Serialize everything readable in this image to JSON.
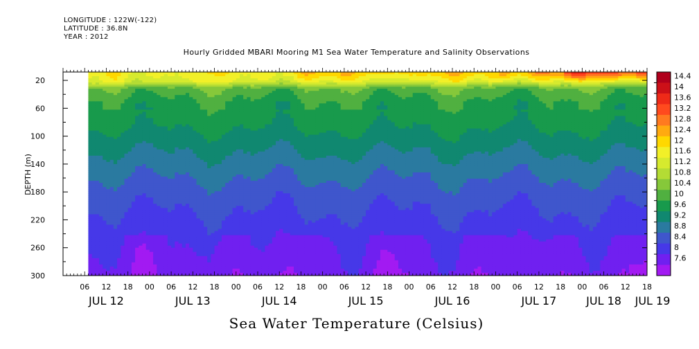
{
  "header": {
    "longitude": "LONGITUDE : 122W(-122)",
    "latitude": "LATITUDE : 36.8N",
    "year": "YEAR : 2012"
  },
  "chart_data": {
    "type": "heatmap",
    "title": "Hourly Gridded MBARI Mooring M1 Sea Water Temperature and Salinity Observations",
    "xlabel": "Sea Water Temperature (Celsius)",
    "ylabel": "DEPTH (m)",
    "y_axis": {
      "ticks": [
        20,
        60,
        100,
        140,
        180,
        220,
        260,
        300
      ],
      "range": [
        8,
        300
      ],
      "reversed": true
    },
    "x_axis": {
      "hour_ticks": [
        "06",
        "12",
        "18",
        "00",
        "06",
        "12",
        "18",
        "00",
        "06",
        "12",
        "18",
        "00",
        "06",
        "12",
        "18",
        "00",
        "06",
        "12",
        "18",
        "00",
        "06",
        "12",
        "18",
        "00",
        "06",
        "12",
        "18",
        "00",
        "06",
        "12",
        "18",
        "00"
      ],
      "date_labels": [
        "JUL 12",
        "JUL 13",
        "JUL 14",
        "JUL 15",
        "JUL 16",
        "JUL 17",
        "JUL 18",
        "JUL 19"
      ],
      "range_hours": [
        0,
        162
      ],
      "data_start_hour": 7
    },
    "colorbar": {
      "levels": [
        "14.4",
        "14",
        "13.6",
        "13.2",
        "12.8",
        "12.4",
        "12",
        "11.6",
        "11.2",
        "10.8",
        "10.4",
        "10",
        "9.6",
        "9.2",
        "8.8",
        "8.4",
        "8",
        "7.6"
      ],
      "colors": [
        "#b0001c",
        "#cc1018",
        "#ee2a18",
        "#ff4a1e",
        "#ff7a20",
        "#ffaa10",
        "#ffd800",
        "#f2f028",
        "#d6ea2e",
        "#b4dc34",
        "#86c83a",
        "#50b040",
        "#189a4c",
        "#108870",
        "#2a7aa0",
        "#3f56cc",
        "#4638e8",
        "#7020f0",
        "#a21af2"
      ]
    },
    "profile": [
      {
        "depth": 10,
        "temp": 11.8
      },
      {
        "depth": 20,
        "temp": 11.5
      },
      {
        "depth": 30,
        "temp": 10.3
      },
      {
        "depth": 50,
        "temp": 9.9
      },
      {
        "depth": 80,
        "temp": 9.7
      },
      {
        "depth": 110,
        "temp": 9.35
      },
      {
        "depth": 140,
        "temp": 9.0
      },
      {
        "depth": 180,
        "temp": 8.6
      },
      {
        "depth": 220,
        "temp": 8.3
      },
      {
        "depth": 260,
        "temp": 8.05
      },
      {
        "depth": 300,
        "temp": 7.85
      }
    ]
  }
}
